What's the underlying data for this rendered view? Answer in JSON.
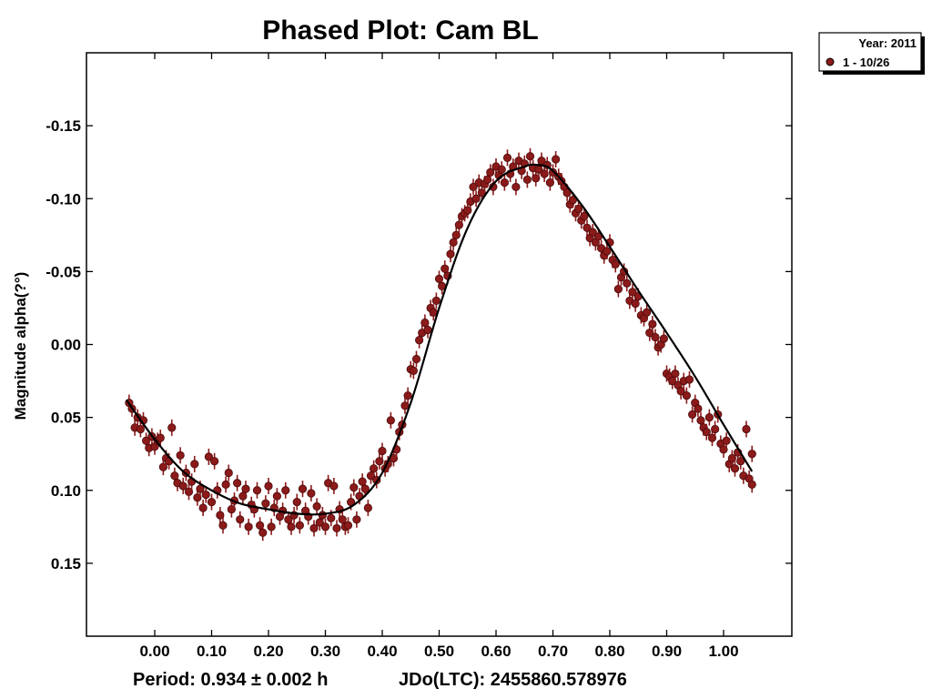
{
  "chart_data": {
    "type": "scatter",
    "title": "Phased Plot: Cam BL",
    "ylabel": "Magnitude alpha(?°)",
    "xlabel": "",
    "x_ticks": [
      "0.00",
      "0.10",
      "0.20",
      "0.30",
      "0.40",
      "0.50",
      "0.60",
      "0.70",
      "0.80",
      "0.90",
      "1.00"
    ],
    "y_ticks": [
      "-0.15",
      "-0.10",
      "-0.05",
      "0.00",
      "0.05",
      "0.10",
      "0.15"
    ],
    "xlim": [
      -0.12,
      1.12
    ],
    "ylim": [
      0.2,
      -0.2
    ],
    "y_inverted": true,
    "grid": false,
    "legend": {
      "placement": "top-right, outside plot",
      "title": "Year: 2011",
      "entries": [
        {
          "label": "1 - 10/26",
          "color": "#8b1a1a"
        }
      ]
    },
    "series": [
      {
        "name": "1 - 10/26",
        "color": "#8b1a1a",
        "fit_curve": {
          "x": [
            -0.05,
            0.0,
            0.05,
            0.1,
            0.15,
            0.2,
            0.25,
            0.3,
            0.35,
            0.4,
            0.45,
            0.5,
            0.55,
            0.6,
            0.65,
            0.675,
            0.7,
            0.75,
            0.8,
            0.85,
            0.9,
            0.95,
            1.0,
            1.05
          ],
          "y": [
            0.038,
            0.065,
            0.087,
            0.1,
            0.109,
            0.113,
            0.116,
            0.116,
            0.11,
            0.088,
            0.04,
            -0.025,
            -0.08,
            -0.112,
            -0.122,
            -0.123,
            -0.119,
            -0.096,
            -0.067,
            -0.037,
            -0.008,
            0.022,
            0.055,
            0.087
          ]
        },
        "points": [
          {
            "x": -0.045,
            "y": 0.04
          },
          {
            "x": -0.04,
            "y": 0.044
          },
          {
            "x": -0.035,
            "y": 0.057
          },
          {
            "x": -0.03,
            "y": 0.05
          },
          {
            "x": -0.025,
            "y": 0.058
          },
          {
            "x": -0.02,
            "y": 0.052
          },
          {
            "x": -0.015,
            "y": 0.066
          },
          {
            "x": -0.01,
            "y": 0.071
          },
          {
            "x": -0.005,
            "y": 0.063
          },
          {
            "x": 0.0,
            "y": 0.07
          },
          {
            "x": 0.005,
            "y": 0.066
          },
          {
            "x": 0.01,
            "y": 0.064
          },
          {
            "x": 0.015,
            "y": 0.084
          },
          {
            "x": 0.02,
            "y": 0.078
          },
          {
            "x": 0.025,
            "y": 0.08
          },
          {
            "x": 0.03,
            "y": 0.057
          },
          {
            "x": 0.035,
            "y": 0.09
          },
          {
            "x": 0.04,
            "y": 0.095
          },
          {
            "x": 0.045,
            "y": 0.076
          },
          {
            "x": 0.05,
            "y": 0.097
          },
          {
            "x": 0.055,
            "y": 0.088
          },
          {
            "x": 0.06,
            "y": 0.101
          },
          {
            "x": 0.065,
            "y": 0.094
          },
          {
            "x": 0.07,
            "y": 0.082
          },
          {
            "x": 0.075,
            "y": 0.105
          },
          {
            "x": 0.08,
            "y": 0.099
          },
          {
            "x": 0.085,
            "y": 0.112
          },
          {
            "x": 0.09,
            "y": 0.103
          },
          {
            "x": 0.095,
            "y": 0.077
          },
          {
            "x": 0.1,
            "y": 0.108
          },
          {
            "x": 0.105,
            "y": 0.08
          },
          {
            "x": 0.11,
            "y": 0.1
          },
          {
            "x": 0.115,
            "y": 0.117
          },
          {
            "x": 0.12,
            "y": 0.124
          },
          {
            "x": 0.125,
            "y": 0.096
          },
          {
            "x": 0.13,
            "y": 0.088
          },
          {
            "x": 0.135,
            "y": 0.113
          },
          {
            "x": 0.14,
            "y": 0.107
          },
          {
            "x": 0.145,
            "y": 0.095
          },
          {
            "x": 0.15,
            "y": 0.12
          },
          {
            "x": 0.155,
            "y": 0.104
          },
          {
            "x": 0.16,
            "y": 0.099
          },
          {
            "x": 0.165,
            "y": 0.125
          },
          {
            "x": 0.17,
            "y": 0.11
          },
          {
            "x": 0.175,
            "y": 0.113
          },
          {
            "x": 0.18,
            "y": 0.1
          },
          {
            "x": 0.185,
            "y": 0.124
          },
          {
            "x": 0.19,
            "y": 0.129
          },
          {
            "x": 0.195,
            "y": 0.109
          },
          {
            "x": 0.2,
            "y": 0.097
          },
          {
            "x": 0.205,
            "y": 0.125
          },
          {
            "x": 0.21,
            "y": 0.112
          },
          {
            "x": 0.215,
            "y": 0.104
          },
          {
            "x": 0.22,
            "y": 0.118
          },
          {
            "x": 0.225,
            "y": 0.114
          },
          {
            "x": 0.23,
            "y": 0.1
          },
          {
            "x": 0.235,
            "y": 0.12
          },
          {
            "x": 0.24,
            "y": 0.125
          },
          {
            "x": 0.245,
            "y": 0.117
          },
          {
            "x": 0.25,
            "y": 0.108
          },
          {
            "x": 0.255,
            "y": 0.124
          },
          {
            "x": 0.26,
            "y": 0.099
          },
          {
            "x": 0.265,
            "y": 0.114
          },
          {
            "x": 0.27,
            "y": 0.118
          },
          {
            "x": 0.275,
            "y": 0.102
          },
          {
            "x": 0.28,
            "y": 0.126
          },
          {
            "x": 0.285,
            "y": 0.111
          },
          {
            "x": 0.29,
            "y": 0.122
          },
          {
            "x": 0.295,
            "y": 0.117
          },
          {
            "x": 0.3,
            "y": 0.125
          },
          {
            "x": 0.305,
            "y": 0.095
          },
          {
            "x": 0.31,
            "y": 0.119
          },
          {
            "x": 0.315,
            "y": 0.097
          },
          {
            "x": 0.32,
            "y": 0.126
          },
          {
            "x": 0.325,
            "y": 0.113
          },
          {
            "x": 0.33,
            "y": 0.12
          },
          {
            "x": 0.335,
            "y": 0.125
          },
          {
            "x": 0.34,
            "y": 0.124
          },
          {
            "x": 0.345,
            "y": 0.108
          },
          {
            "x": 0.35,
            "y": 0.098
          },
          {
            "x": 0.355,
            "y": 0.12
          },
          {
            "x": 0.36,
            "y": 0.104
          },
          {
            "x": 0.365,
            "y": 0.094
          },
          {
            "x": 0.37,
            "y": 0.099
          },
          {
            "x": 0.375,
            "y": 0.112
          },
          {
            "x": 0.38,
            "y": 0.09
          },
          {
            "x": 0.385,
            "y": 0.085
          },
          {
            "x": 0.39,
            "y": 0.093
          },
          {
            "x": 0.395,
            "y": 0.08
          },
          {
            "x": 0.4,
            "y": 0.073
          },
          {
            "x": 0.405,
            "y": 0.085
          },
          {
            "x": 0.41,
            "y": 0.082
          },
          {
            "x": 0.415,
            "y": 0.052
          },
          {
            "x": 0.42,
            "y": 0.078
          },
          {
            "x": 0.425,
            "y": 0.072
          },
          {
            "x": 0.43,
            "y": 0.06
          },
          {
            "x": 0.435,
            "y": 0.055
          },
          {
            "x": 0.44,
            "y": 0.042
          },
          {
            "x": 0.445,
            "y": 0.035
          },
          {
            "x": 0.45,
            "y": 0.017
          },
          {
            "x": 0.455,
            "y": 0.018
          },
          {
            "x": 0.46,
            "y": 0.01
          },
          {
            "x": 0.465,
            "y": -0.003
          },
          {
            "x": 0.47,
            "y": -0.008
          },
          {
            "x": 0.475,
            "y": -0.015
          },
          {
            "x": 0.48,
            "y": -0.01
          },
          {
            "x": 0.485,
            "y": -0.025
          },
          {
            "x": 0.49,
            "y": -0.022
          },
          {
            "x": 0.495,
            "y": -0.03
          },
          {
            "x": 0.5,
            "y": -0.045
          },
          {
            "x": 0.505,
            "y": -0.04
          },
          {
            "x": 0.51,
            "y": -0.052
          },
          {
            "x": 0.515,
            "y": -0.047
          },
          {
            "x": 0.52,
            "y": -0.062
          },
          {
            "x": 0.525,
            "y": -0.07
          },
          {
            "x": 0.53,
            "y": -0.075
          },
          {
            "x": 0.535,
            "y": -0.082
          },
          {
            "x": 0.54,
            "y": -0.088
          },
          {
            "x": 0.545,
            "y": -0.09
          },
          {
            "x": 0.55,
            "y": -0.092
          },
          {
            "x": 0.555,
            "y": -0.098
          },
          {
            "x": 0.56,
            "y": -0.108
          },
          {
            "x": 0.565,
            "y": -0.1
          },
          {
            "x": 0.57,
            "y": -0.111
          },
          {
            "x": 0.575,
            "y": -0.104
          },
          {
            "x": 0.58,
            "y": -0.11
          },
          {
            "x": 0.585,
            "y": -0.113
          },
          {
            "x": 0.59,
            "y": -0.118
          },
          {
            "x": 0.595,
            "y": -0.108
          },
          {
            "x": 0.6,
            "y": -0.122
          },
          {
            "x": 0.605,
            "y": -0.116
          },
          {
            "x": 0.61,
            "y": -0.12
          },
          {
            "x": 0.615,
            "y": -0.111
          },
          {
            "x": 0.62,
            "y": -0.128
          },
          {
            "x": 0.625,
            "y": -0.117
          },
          {
            "x": 0.63,
            "y": -0.122
          },
          {
            "x": 0.635,
            "y": -0.108
          },
          {
            "x": 0.64,
            "y": -0.126
          },
          {
            "x": 0.645,
            "y": -0.119
          },
          {
            "x": 0.65,
            "y": -0.124
          },
          {
            "x": 0.655,
            "y": -0.113
          },
          {
            "x": 0.66,
            "y": -0.129
          },
          {
            "x": 0.665,
            "y": -0.121
          },
          {
            "x": 0.67,
            "y": -0.114
          },
          {
            "x": 0.675,
            "y": -0.12
          },
          {
            "x": 0.68,
            "y": -0.126
          },
          {
            "x": 0.685,
            "y": -0.117
          },
          {
            "x": 0.69,
            "y": -0.123
          },
          {
            "x": 0.695,
            "y": -0.111
          },
          {
            "x": 0.7,
            "y": -0.118
          },
          {
            "x": 0.705,
            "y": -0.127
          },
          {
            "x": 0.71,
            "y": -0.115
          },
          {
            "x": 0.715,
            "y": -0.112
          },
          {
            "x": 0.72,
            "y": -0.108
          },
          {
            "x": 0.725,
            "y": -0.104
          },
          {
            "x": 0.73,
            "y": -0.096
          },
          {
            "x": 0.735,
            "y": -0.099
          },
          {
            "x": 0.74,
            "y": -0.09
          },
          {
            "x": 0.745,
            "y": -0.093
          },
          {
            "x": 0.75,
            "y": -0.085
          },
          {
            "x": 0.755,
            "y": -0.088
          },
          {
            "x": 0.76,
            "y": -0.08
          },
          {
            "x": 0.765,
            "y": -0.073
          },
          {
            "x": 0.77,
            "y": -0.077
          },
          {
            "x": 0.775,
            "y": -0.07
          },
          {
            "x": 0.78,
            "y": -0.074
          },
          {
            "x": 0.785,
            "y": -0.066
          },
          {
            "x": 0.79,
            "y": -0.061
          },
          {
            "x": 0.795,
            "y": -0.064
          },
          {
            "x": 0.8,
            "y": -0.07
          },
          {
            "x": 0.805,
            "y": -0.058
          },
          {
            "x": 0.81,
            "y": -0.055
          },
          {
            "x": 0.815,
            "y": -0.038
          },
          {
            "x": 0.82,
            "y": -0.046
          },
          {
            "x": 0.825,
            "y": -0.05
          },
          {
            "x": 0.83,
            "y": -0.042
          },
          {
            "x": 0.835,
            "y": -0.03
          },
          {
            "x": 0.84,
            "y": -0.036
          },
          {
            "x": 0.845,
            "y": -0.028
          },
          {
            "x": 0.85,
            "y": -0.033
          },
          {
            "x": 0.855,
            "y": -0.02
          },
          {
            "x": 0.86,
            "y": -0.018
          },
          {
            "x": 0.865,
            "y": -0.022
          },
          {
            "x": 0.87,
            "y": -0.008
          },
          {
            "x": 0.875,
            "y": -0.014
          },
          {
            "x": 0.88,
            "y": -0.005
          },
          {
            "x": 0.885,
            "y": 0.002
          },
          {
            "x": 0.89,
            "y": 0.0
          },
          {
            "x": 0.895,
            "y": -0.004
          },
          {
            "x": 0.9,
            "y": 0.02
          },
          {
            "x": 0.905,
            "y": 0.022
          },
          {
            "x": 0.91,
            "y": 0.025
          },
          {
            "x": 0.915,
            "y": 0.02
          },
          {
            "x": 0.92,
            "y": 0.028
          },
          {
            "x": 0.925,
            "y": 0.032
          },
          {
            "x": 0.93,
            "y": 0.025
          },
          {
            "x": 0.935,
            "y": 0.035
          },
          {
            "x": 0.94,
            "y": 0.024
          },
          {
            "x": 0.945,
            "y": 0.048
          },
          {
            "x": 0.95,
            "y": 0.04
          },
          {
            "x": 0.955,
            "y": 0.044
          },
          {
            "x": 0.96,
            "y": 0.052
          },
          {
            "x": 0.965,
            "y": 0.057
          },
          {
            "x": 0.97,
            "y": 0.06
          },
          {
            "x": 0.975,
            "y": 0.05
          },
          {
            "x": 0.98,
            "y": 0.064
          },
          {
            "x": 0.985,
            "y": 0.058
          },
          {
            "x": 0.99,
            "y": 0.048
          },
          {
            "x": 0.995,
            "y": 0.068
          },
          {
            "x": 1.0,
            "y": 0.072
          },
          {
            "x": 1.005,
            "y": 0.066
          },
          {
            "x": 1.01,
            "y": 0.082
          },
          {
            "x": 1.015,
            "y": 0.078
          },
          {
            "x": 1.02,
            "y": 0.085
          },
          {
            "x": 1.025,
            "y": 0.074
          },
          {
            "x": 1.03,
            "y": 0.08
          },
          {
            "x": 1.035,
            "y": 0.09
          },
          {
            "x": 1.04,
            "y": 0.058
          },
          {
            "x": 1.045,
            "y": 0.092
          },
          {
            "x": 1.05,
            "y": 0.075
          },
          {
            "x": 1.05,
            "y": 0.096
          }
        ]
      }
    ],
    "footer": {
      "period": "Period: 0.934 ± 0.002 h",
      "epoch": "JDo(LTC): 2455860.578976"
    }
  }
}
